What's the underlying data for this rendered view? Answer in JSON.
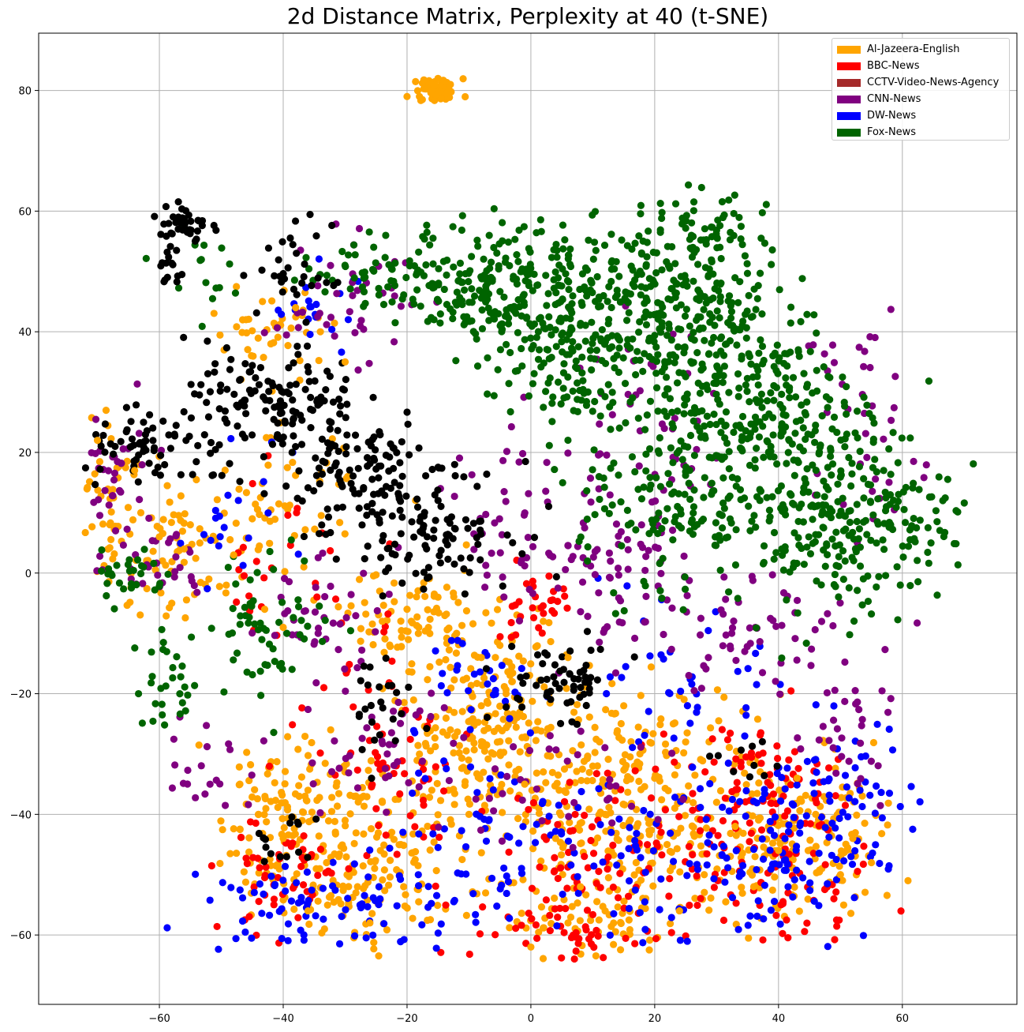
{
  "chart_data": {
    "type": "scatter",
    "title": "2d Distance Matrix, Perplexity at 40 (t-SNE)",
    "xlabel": "",
    "ylabel": "",
    "xlim": [
      -79.5,
      78.5
    ],
    "ylim": [
      -71.5,
      89.5
    ],
    "xticks": [
      -60,
      -40,
      -20,
      0,
      20,
      40,
      60
    ],
    "xtick_labels": [
      "−60",
      "−40",
      "−20",
      "0",
      "20",
      "40",
      "60"
    ],
    "yticks": [
      -60,
      -40,
      -20,
      0,
      20,
      40,
      60,
      80
    ],
    "ytick_labels": [
      "−60",
      "−40",
      "−20",
      "0",
      "20",
      "40",
      "60",
      "80"
    ],
    "grid": true,
    "legend_position": "top-right",
    "legend": [
      {
        "name": "Al-Jazeera-English",
        "color": "#ffa500"
      },
      {
        "name": "BBC-News",
        "color": "#ff0000"
      },
      {
        "name": "CCTV-Video-News-Agency",
        "color": "#a52a2a"
      },
      {
        "name": "CNN-News",
        "color": "#800080"
      },
      {
        "name": "DW-News",
        "color": "#0000ff"
      },
      {
        "name": "Fox-News",
        "color": "#006400"
      }
    ],
    "unlabeled_series_color": "#000000",
    "series": [
      {
        "name": "Al-Jazeera-English",
        "color": "#ffa500",
        "points": [
          [
            -16,
            80
          ],
          [
            -13,
            81
          ],
          [
            -18,
            79
          ],
          [
            -15,
            82
          ],
          [
            -20,
            79
          ],
          [
            -70,
            22
          ],
          [
            -68,
            8
          ],
          [
            -64,
            17
          ],
          [
            -60,
            6
          ],
          [
            -56,
            4
          ],
          [
            -52,
            -1
          ],
          [
            -48,
            3
          ],
          [
            -45,
            9
          ],
          [
            -43,
            -6
          ],
          [
            -40,
            -9
          ],
          [
            -47,
            -35
          ],
          [
            -44,
            -40
          ],
          [
            -40,
            -44
          ],
          [
            -36,
            -36
          ],
          [
            -33,
            -48
          ],
          [
            -30,
            -41
          ],
          [
            -28,
            -52
          ],
          [
            -24,
            -38
          ],
          [
            -21,
            -45
          ],
          [
            -18,
            -30
          ],
          [
            -16,
            -36
          ],
          [
            -13,
            -26
          ],
          [
            -10,
            -40
          ],
          [
            -8,
            -22
          ],
          [
            -6,
            -30
          ],
          [
            -5,
            -12
          ],
          [
            -3,
            -18
          ],
          [
            -1,
            -35
          ],
          [
            1,
            -26
          ],
          [
            2,
            -8
          ],
          [
            4,
            -44
          ],
          [
            6,
            -14
          ],
          [
            8,
            -52
          ],
          [
            10,
            -32
          ],
          [
            12,
            -40
          ],
          [
            15,
            -22
          ],
          [
            17,
            -48
          ],
          [
            20,
            -34
          ],
          [
            22,
            -45
          ],
          [
            25,
            -28
          ],
          [
            28,
            -50
          ],
          [
            30,
            -38
          ],
          [
            33,
            -42
          ],
          [
            36,
            -52
          ],
          [
            40,
            -46
          ],
          [
            43,
            -34
          ],
          [
            46,
            -40
          ],
          [
            50,
            -50
          ],
          [
            52,
            -44
          ],
          [
            55,
            -48
          ],
          [
            -24,
            -8
          ],
          [
            -20,
            -6
          ],
          [
            -15,
            -4
          ],
          [
            -12,
            -10
          ],
          [
            -8,
            -14
          ],
          [
            -4,
            -20
          ],
          [
            0,
            -62
          ],
          [
            6,
            -58
          ],
          [
            12,
            -56
          ],
          [
            24,
            -56
          ],
          [
            -46,
            42
          ],
          [
            -42,
            38
          ],
          [
            -38,
            44
          ],
          [
            -34,
            40
          ],
          [
            -30,
            35
          ],
          [
            -55,
            8
          ],
          [
            -63,
            10
          ],
          [
            -58,
            -5
          ],
          [
            -36,
            -56
          ],
          [
            -26,
            -58
          ]
        ]
      },
      {
        "name": "BBC-News",
        "color": "#ff0000"
      },
      {
        "name": "CCTV-Video-News-Agency",
        "color": "#a52a2a"
      },
      {
        "name": "CNN-News",
        "color": "#800080"
      },
      {
        "name": "DW-News",
        "color": "#0000ff"
      },
      {
        "name": "Fox-News",
        "color": "#006400"
      },
      {
        "name": "",
        "color": "#000000"
      }
    ]
  }
}
